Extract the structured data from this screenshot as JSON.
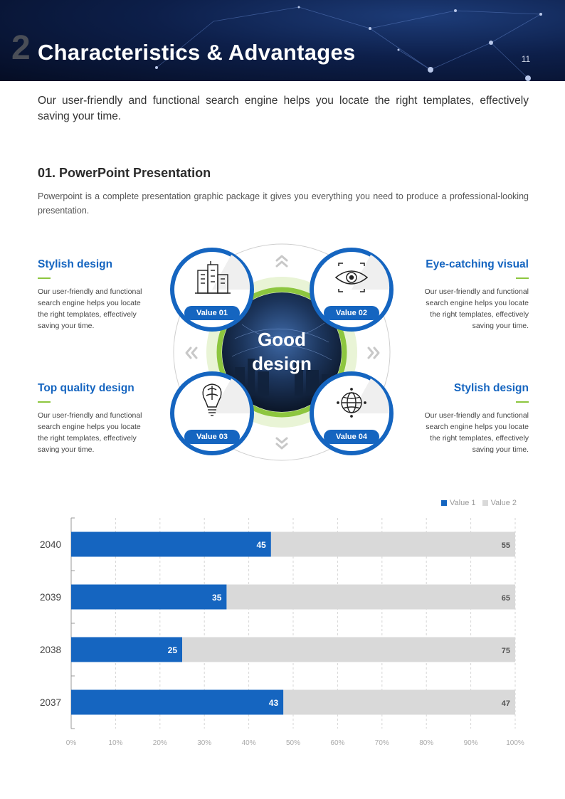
{
  "header": {
    "chapter_number": "2",
    "title": "Characteristics & Advantages",
    "page_number": "11"
  },
  "intro": "Our user-friendly and functional search engine helps you locate the right templates, effectively saving your time.",
  "section": {
    "title": "01. PowerPoint Presentation",
    "description": "Powerpoint is a complete presentation graphic package it gives you everything you need to produce a professional-looking presentation."
  },
  "features": [
    {
      "title": "Stylish design",
      "text": "Our user-friendly and functional search engine helps you locate the right templates, effectively saving your time."
    },
    {
      "title": "Eye-catching visual",
      "text": "Our user-friendly and functional search engine helps you locate the right templates, effectively saving your time."
    },
    {
      "title": "Top quality design",
      "text": "Our user-friendly and functional search engine helps you locate the right templates, effectively saving your time."
    },
    {
      "title": "Stylish design",
      "text": "Our user-friendly and functional search engine helps you locate the right templates, effectively saving your time."
    }
  ],
  "diagram": {
    "center_line1": "Good",
    "center_line2": "design",
    "values": [
      "Value 01",
      "Value 02",
      "Value 03",
      "Value 04"
    ],
    "icons": [
      "buildings-icon",
      "eye-icon",
      "brain-bulb-icon",
      "globe-icon"
    ],
    "accent": "#1565c0",
    "ring_color": "#8dc63f"
  },
  "chart_data": {
    "type": "bar",
    "orientation": "horizontal",
    "stacked": "percent",
    "categories": [
      "2040",
      "2039",
      "2038",
      "2037"
    ],
    "series": [
      {
        "name": "Value 1",
        "values": [
          45,
          35,
          25,
          43
        ],
        "color": "#1565c0"
      },
      {
        "name": "Value 2",
        "values": [
          55,
          65,
          75,
          47
        ],
        "color": "#d9d9d9"
      }
    ],
    "xticks": [
      "0%",
      "10%",
      "20%",
      "30%",
      "40%",
      "50%",
      "60%",
      "70%",
      "80%",
      "90%",
      "100%"
    ],
    "xlim": [
      0,
      100
    ],
    "grid": true,
    "legend": "top-right"
  }
}
